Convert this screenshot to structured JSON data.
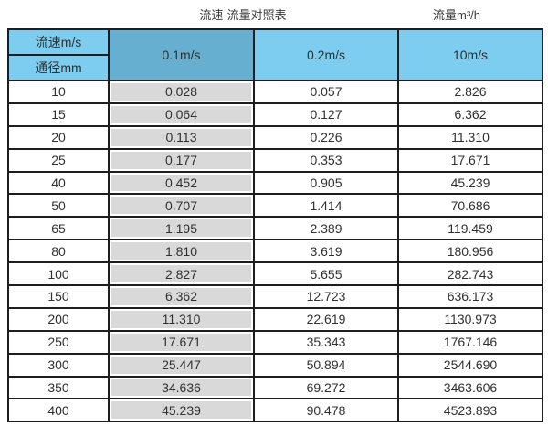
{
  "titles": {
    "left": "流速-流量对照表",
    "right": "流量m³/h"
  },
  "table_header": {
    "corner_top": "流速m/s",
    "corner_bottom": "通径mm",
    "columns": [
      "0.1m/s",
      "0.2m/s",
      "10m/s"
    ]
  },
  "chart_data": {
    "type": "table",
    "title": "流速-流量对照表",
    "unit_label": "流量m³/h",
    "col_header": "流速m/s",
    "row_header": "通径mm",
    "columns": [
      "0.1m/s",
      "0.2m/s",
      "10m/s"
    ],
    "rows": [
      {
        "diameter_mm": "10",
        "values": [
          "0.028",
          "0.057",
          "2.826"
        ]
      },
      {
        "diameter_mm": "15",
        "values": [
          "0.064",
          "0.127",
          "6.362"
        ]
      },
      {
        "diameter_mm": "20",
        "values": [
          "0.113",
          "0.226",
          "11.310"
        ]
      },
      {
        "diameter_mm": "25",
        "values": [
          "0.177",
          "0.353",
          "17.671"
        ]
      },
      {
        "diameter_mm": "40",
        "values": [
          "0.452",
          "0.905",
          "45.239"
        ]
      },
      {
        "diameter_mm": "50",
        "values": [
          "0.707",
          "1.414",
          "70.686"
        ]
      },
      {
        "diameter_mm": "65",
        "values": [
          "1.195",
          "2.389",
          "119.459"
        ]
      },
      {
        "diameter_mm": "80",
        "values": [
          "1.810",
          "3.619",
          "180.956"
        ]
      },
      {
        "diameter_mm": "100",
        "values": [
          "2.827",
          "5.655",
          "282.743"
        ]
      },
      {
        "diameter_mm": "150",
        "values": [
          "6.362",
          "12.723",
          "636.173"
        ]
      },
      {
        "diameter_mm": "200",
        "values": [
          "11.310",
          "22.619",
          "1130.973"
        ]
      },
      {
        "diameter_mm": "250",
        "values": [
          "17.671",
          "35.343",
          "1767.146"
        ]
      },
      {
        "diameter_mm": "300",
        "values": [
          "25.447",
          "50.894",
          "2544.690"
        ]
      },
      {
        "diameter_mm": "350",
        "values": [
          "34.636",
          "69.272",
          "3463.606"
        ]
      },
      {
        "diameter_mm": "400",
        "values": [
          "45.239",
          "90.478",
          "4523.893"
        ]
      }
    ]
  },
  "colors": {
    "header_light_blue": "#7CCDEF",
    "header_dark_blue": "#66AFD0",
    "gray_column": "#D9D9D9",
    "border": "#1E1E1E"
  }
}
